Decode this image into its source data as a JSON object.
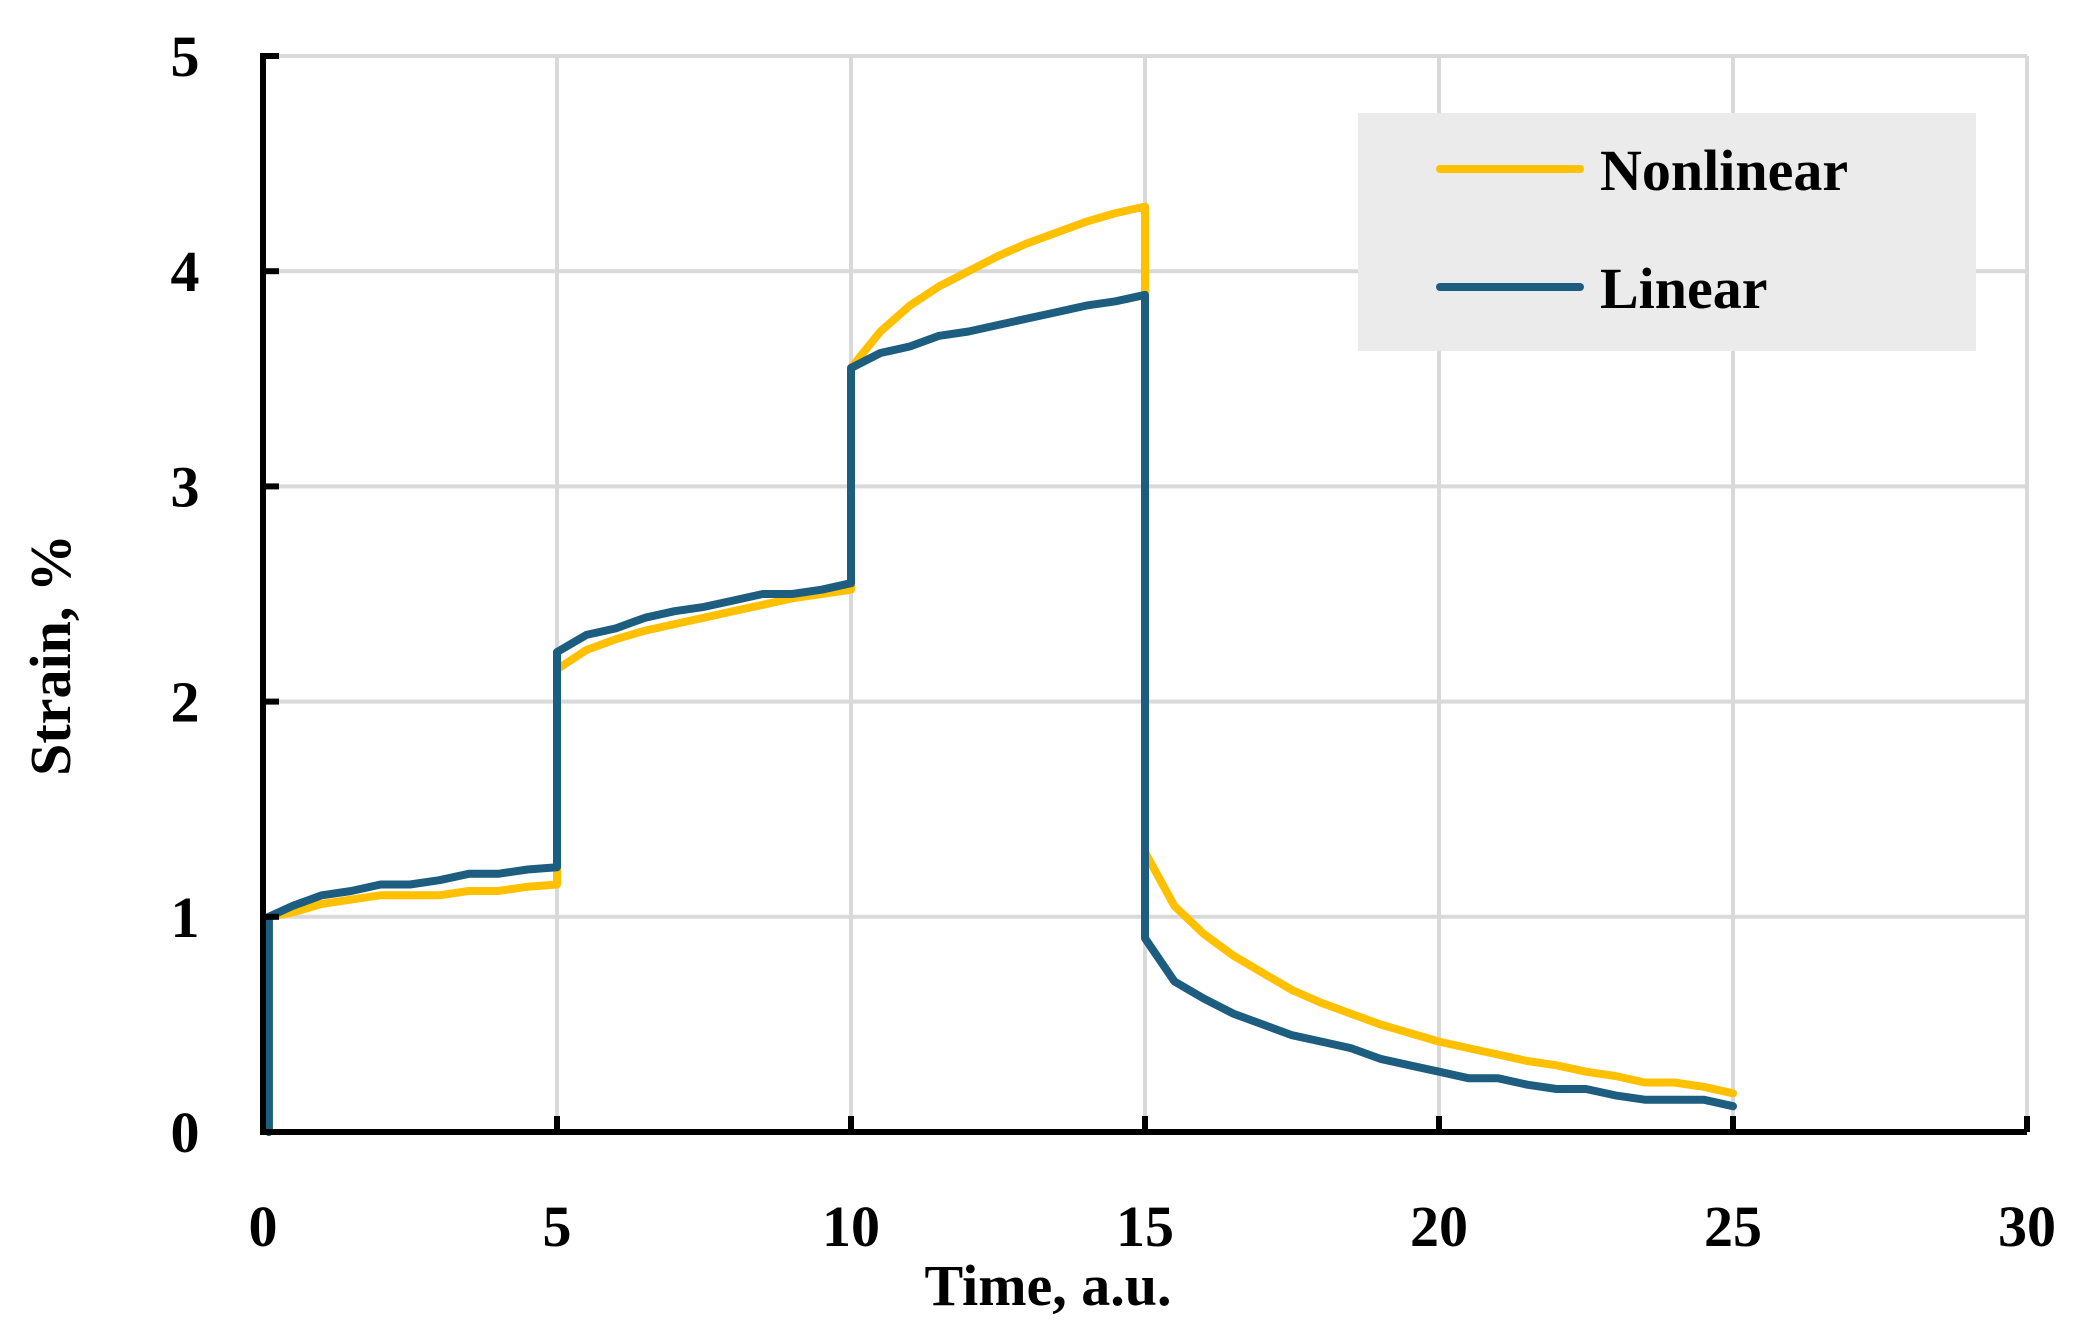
{
  "chart_data": {
    "type": "line",
    "title": "",
    "xlabel": "Time, a.u.",
    "ylabel": "Strain, %",
    "xlim": [
      0,
      30
    ],
    "ylim": [
      0,
      5
    ],
    "xticks": [
      0,
      5,
      10,
      15,
      20,
      25,
      30
    ],
    "yticks": [
      0,
      1,
      2,
      3,
      4,
      5
    ],
    "xtick_labels": [
      "0",
      "5",
      "10",
      "15",
      "20",
      "25",
      "30"
    ],
    "ytick_labels": [
      "0",
      "1",
      "2",
      "3",
      "4",
      "5"
    ],
    "grid": true,
    "legend_position": "top-right",
    "series": [
      {
        "name": "Nonlinear",
        "color": "#ffc000",
        "points": [
          [
            0.1,
            0
          ],
          [
            0.1,
            1.0
          ],
          [
            0.5,
            1.02
          ],
          [
            1,
            1.06
          ],
          [
            1.5,
            1.08
          ],
          [
            2,
            1.1
          ],
          [
            2.5,
            1.1
          ],
          [
            3,
            1.1
          ],
          [
            3.5,
            1.12
          ],
          [
            4,
            1.12
          ],
          [
            4.5,
            1.14
          ],
          [
            5,
            1.15
          ],
          [
            5,
            2.15
          ],
          [
            5.5,
            2.24
          ],
          [
            6,
            2.29
          ],
          [
            6.5,
            2.33
          ],
          [
            7,
            2.36
          ],
          [
            7.5,
            2.39
          ],
          [
            8,
            2.42
          ],
          [
            8.5,
            2.45
          ],
          [
            9,
            2.48
          ],
          [
            9.5,
            2.5
          ],
          [
            10,
            2.52
          ],
          [
            10,
            3.55
          ],
          [
            10.5,
            3.72
          ],
          [
            11,
            3.84
          ],
          [
            11.5,
            3.93
          ],
          [
            12,
            4.0
          ],
          [
            12.5,
            4.07
          ],
          [
            13,
            4.13
          ],
          [
            13.5,
            4.18
          ],
          [
            14,
            4.23
          ],
          [
            14.5,
            4.27
          ],
          [
            15,
            4.3
          ],
          [
            15,
            1.3
          ],
          [
            15.5,
            1.05
          ],
          [
            16,
            0.92
          ],
          [
            16.5,
            0.82
          ],
          [
            17,
            0.74
          ],
          [
            17.5,
            0.66
          ],
          [
            18,
            0.6
          ],
          [
            18.5,
            0.55
          ],
          [
            19,
            0.5
          ],
          [
            19.5,
            0.46
          ],
          [
            20,
            0.42
          ],
          [
            20.5,
            0.39
          ],
          [
            21,
            0.36
          ],
          [
            21.5,
            0.33
          ],
          [
            22,
            0.31
          ],
          [
            22.5,
            0.28
          ],
          [
            23,
            0.26
          ],
          [
            23.5,
            0.23
          ],
          [
            24,
            0.23
          ],
          [
            24.5,
            0.21
          ],
          [
            25,
            0.18
          ]
        ]
      },
      {
        "name": "Linear",
        "color": "#1c5d80",
        "points": [
          [
            0.1,
            0
          ],
          [
            0.1,
            1.0
          ],
          [
            0.5,
            1.05
          ],
          [
            1,
            1.1
          ],
          [
            1.5,
            1.12
          ],
          [
            2,
            1.15
          ],
          [
            2.5,
            1.15
          ],
          [
            3,
            1.17
          ],
          [
            3.5,
            1.2
          ],
          [
            4,
            1.2
          ],
          [
            4.5,
            1.22
          ],
          [
            5,
            1.23
          ],
          [
            5,
            2.23
          ],
          [
            5.5,
            2.31
          ],
          [
            6,
            2.34
          ],
          [
            6.5,
            2.39
          ],
          [
            7,
            2.42
          ],
          [
            7.5,
            2.44
          ],
          [
            8,
            2.47
          ],
          [
            8.5,
            2.5
          ],
          [
            9,
            2.5
          ],
          [
            9.5,
            2.52
          ],
          [
            10,
            2.55
          ],
          [
            10,
            3.55
          ],
          [
            10.5,
            3.62
          ],
          [
            11,
            3.65
          ],
          [
            11.5,
            3.7
          ],
          [
            12,
            3.72
          ],
          [
            12.5,
            3.75
          ],
          [
            13,
            3.78
          ],
          [
            13.5,
            3.81
          ],
          [
            14,
            3.84
          ],
          [
            14.5,
            3.86
          ],
          [
            15,
            3.89
          ],
          [
            15,
            0.9
          ],
          [
            15.5,
            0.7
          ],
          [
            16,
            0.62
          ],
          [
            16.5,
            0.55
          ],
          [
            17,
            0.5
          ],
          [
            17.5,
            0.45
          ],
          [
            18,
            0.42
          ],
          [
            18.5,
            0.39
          ],
          [
            19,
            0.34
          ],
          [
            19.5,
            0.31
          ],
          [
            20,
            0.28
          ],
          [
            20.5,
            0.25
          ],
          [
            21,
            0.25
          ],
          [
            21.5,
            0.22
          ],
          [
            22,
            0.2
          ],
          [
            22.5,
            0.2
          ],
          [
            23,
            0.17
          ],
          [
            23.5,
            0.15
          ],
          [
            24,
            0.15
          ],
          [
            24.5,
            0.15
          ],
          [
            25,
            0.12
          ]
        ]
      }
    ]
  }
}
